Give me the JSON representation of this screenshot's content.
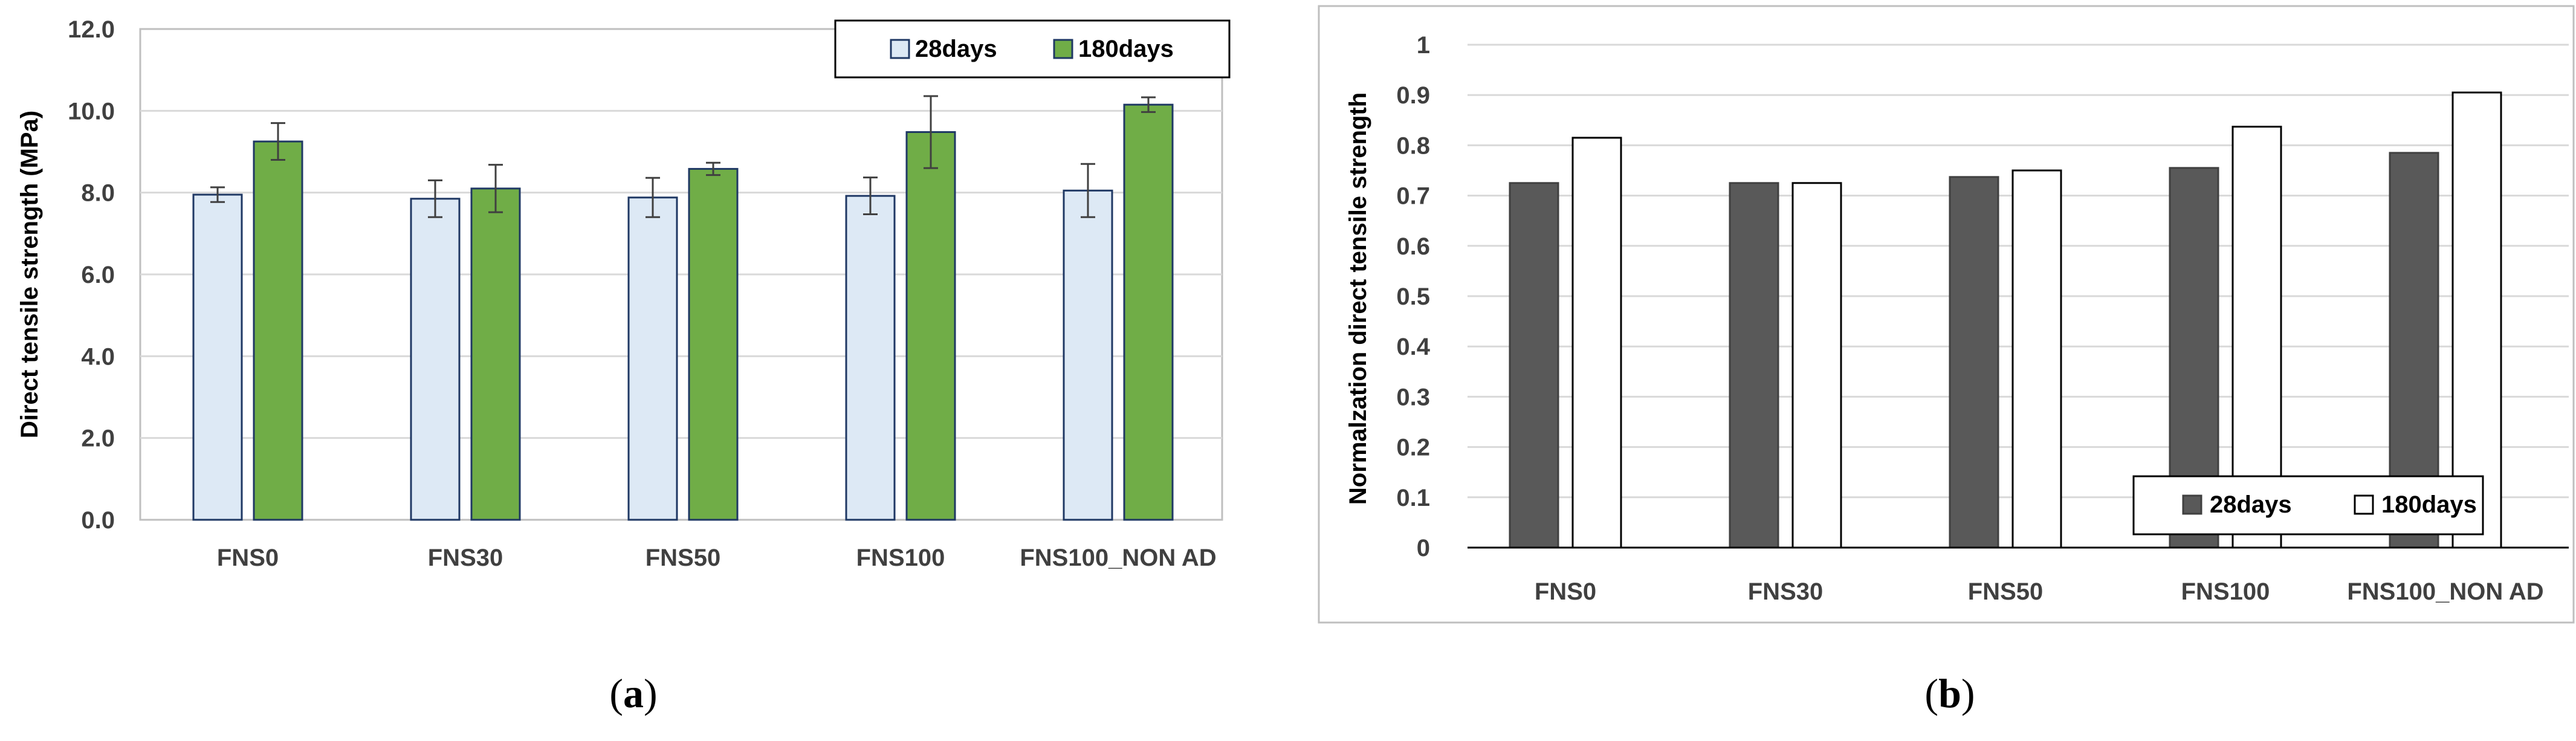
{
  "chart_data": [
    {
      "id": "a",
      "type": "bar",
      "caption_open": "(",
      "caption_letter": "a",
      "caption_close": ")",
      "categories": [
        "FNS0",
        "FNS30",
        "FNS50",
        "FNS100",
        "FNS100_NON AD"
      ],
      "ylabel": "Direct tensile strength (MPa)",
      "xlabel": "",
      "ylim": [
        0,
        12
      ],
      "yticks": [
        "0.0",
        "2.0",
        "4.0",
        "6.0",
        "8.0",
        "10.0",
        "12.0"
      ],
      "grid": true,
      "legend_position": "top-right",
      "series": [
        {
          "name": "28days",
          "values": [
            7.95,
            7.85,
            7.88,
            7.92,
            8.05
          ],
          "errors": [
            0.18,
            0.45,
            0.48,
            0.45,
            0.65
          ],
          "color": "#dde9f5",
          "edge": "#1f3864"
        },
        {
          "name": "180days",
          "values": [
            9.25,
            8.1,
            8.58,
            9.48,
            10.15
          ],
          "errors": [
            0.45,
            0.58,
            0.15,
            0.88,
            0.18
          ],
          "color": "#70ad47",
          "edge": "#1f3864"
        }
      ]
    },
    {
      "id": "b",
      "type": "bar",
      "caption_open": "(",
      "caption_letter": "b",
      "caption_close": ")",
      "categories": [
        "FNS0",
        "FNS30",
        "FNS50",
        "FNS100",
        "FNS100_NON AD"
      ],
      "ylabel": "Normalzation direct tensile strength",
      "xlabel": "",
      "ylim": [
        0,
        1
      ],
      "yticks": [
        "0",
        "0.1",
        "0.2",
        "0.3",
        "0.4",
        "0.5",
        "0.6",
        "0.7",
        "0.8",
        "0.9",
        "1"
      ],
      "grid": true,
      "legend_position": "bottom-right",
      "series": [
        {
          "name": "28days",
          "values": [
            0.725,
            0.725,
            0.737,
            0.755,
            0.785
          ],
          "color": "#595959",
          "edge": "#404040"
        },
        {
          "name": "180days",
          "values": [
            0.815,
            0.725,
            0.75,
            0.837,
            0.905
          ],
          "color": "#ffffff",
          "edge": "#000000"
        }
      ]
    }
  ]
}
